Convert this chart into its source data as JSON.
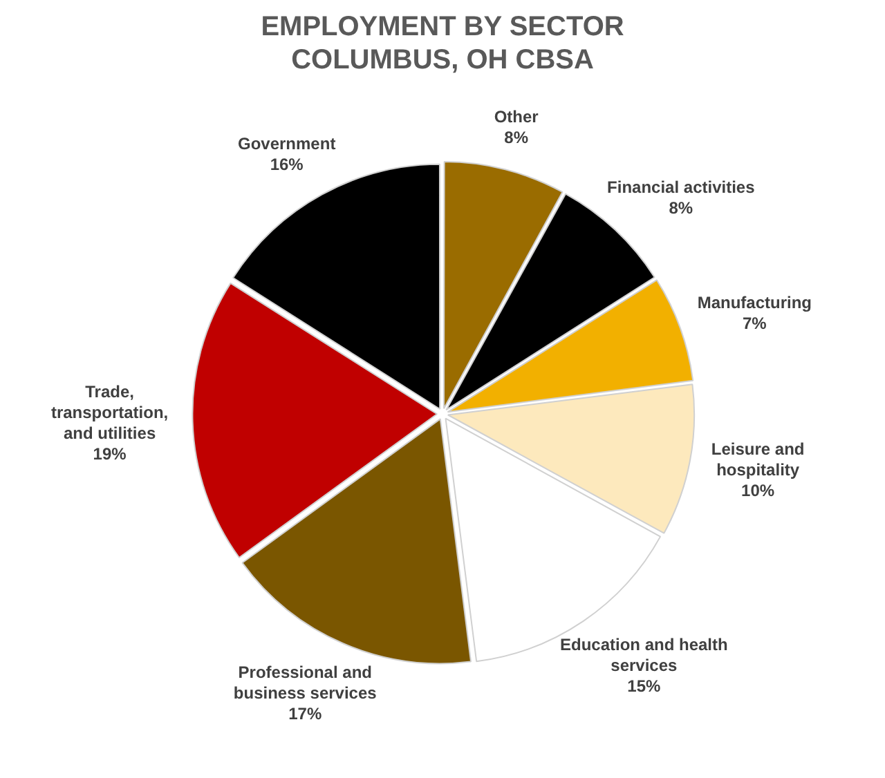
{
  "chart_data": {
    "type": "pie",
    "title": "EMPLOYMENT BY SECTOR\nCOLUMBUS, OH CBSA",
    "categories": [
      "Other",
      "Financial activities",
      "Manufacturing",
      "Leisure and hospitality",
      "Education and health services",
      "Professional and business services",
      "Trade, transportation, and utilities",
      "Government"
    ],
    "values": [
      8,
      8,
      7,
      10,
      15,
      17,
      19,
      16
    ],
    "value_labels": [
      "8%",
      "8%",
      "7%",
      "10%",
      "15%",
      "17%",
      "19%",
      "16%"
    ],
    "colors": [
      "#9a6c00",
      "#000000",
      "#f2b000",
      "#fde9bd",
      "#ffffff",
      "#7a5600",
      "#c00000",
      "#000000"
    ],
    "legend": false
  }
}
